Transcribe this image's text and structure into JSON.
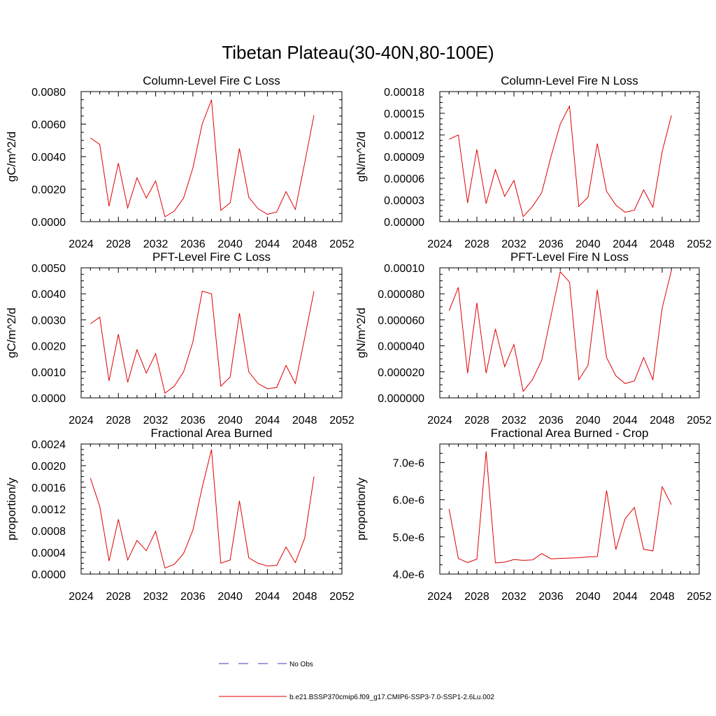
{
  "figure": {
    "title": "Tibetan Plateau(30-40N,80-100E)"
  },
  "legend": {
    "items": [
      {
        "label": "No Obs",
        "color": "#3b3bb8",
        "dash": true
      },
      {
        "label": "b.e21.BSSP370cmip6.f09_g17.CMIP6-SSP3-7.0-SSP1-2.6Lu.002",
        "color": "#e00000",
        "dash": false
      }
    ]
  },
  "colors": {
    "series": "#e00000",
    "axis": "#000000"
  },
  "chart_data": [
    {
      "type": "line",
      "title": "Column-Level Fire C Loss",
      "ylabel": "gC/m^2/d",
      "xlim": [
        2024,
        2052
      ],
      "xticks": [
        2024,
        2028,
        2032,
        2036,
        2040,
        2044,
        2048,
        2052
      ],
      "ylim": [
        0,
        0.008
      ],
      "yticks": [
        0,
        0.002,
        0.004,
        0.006,
        0.008
      ],
      "ytick_labels": [
        "0.0000",
        "0.0020",
        "0.0040",
        "0.0060",
        "0.0080"
      ],
      "x": [
        2025,
        2026,
        2027,
        2028,
        2029,
        2030,
        2031,
        2032,
        2033,
        2034,
        2035,
        2036,
        2037,
        2038,
        2039,
        2040,
        2041,
        2042,
        2043,
        2044,
        2045,
        2046,
        2047,
        2048,
        2049
      ],
      "values": [
        0.00515,
        0.00475,
        0.00095,
        0.0036,
        0.00085,
        0.0027,
        0.00145,
        0.0025,
        0.0003,
        0.00065,
        0.00145,
        0.0033,
        0.006,
        0.0075,
        0.0007,
        0.00115,
        0.0045,
        0.0015,
        0.0008,
        0.00045,
        0.0006,
        0.00185,
        0.00075,
        0.0036,
        0.00655
      ]
    },
    {
      "type": "line",
      "title": "Column-Level Fire N Loss",
      "ylabel": "gN/m^2/d",
      "xlim": [
        2024,
        2052
      ],
      "xticks": [
        2024,
        2028,
        2032,
        2036,
        2040,
        2044,
        2048,
        2052
      ],
      "ylim": [
        0,
        0.00018
      ],
      "yticks": [
        0,
        3e-05,
        6e-05,
        9e-05,
        0.00012,
        0.00015,
        0.00018
      ],
      "ytick_labels": [
        "0.00000",
        "0.00003",
        "0.00006",
        "0.00009",
        "0.00012",
        "0.00015",
        "0.00018"
      ],
      "x": [
        2025,
        2026,
        2027,
        2028,
        2029,
        2030,
        2031,
        2032,
        2033,
        2034,
        2035,
        2036,
        2037,
        2038,
        2039,
        2040,
        2041,
        2042,
        2043,
        2044,
        2045,
        2046,
        2047,
        2048,
        2049
      ],
      "values": [
        0.000114,
        0.00012,
        2.6e-05,
        0.0001,
        2.5e-05,
        7.2e-05,
        3.5e-05,
        5.7e-05,
        7e-06,
        2.1e-05,
        4e-05,
        9e-05,
        0.000135,
        0.00016,
        2.1e-05,
        3.4e-05,
        0.000108,
        4.2e-05,
        2.3e-05,
        1.3e-05,
        1.6e-05,
        4.4e-05,
        2e-05,
        9.7e-05,
        0.000147
      ]
    },
    {
      "type": "line",
      "title": "PFT-Level Fire C Loss",
      "ylabel": "gC/m^2/d",
      "xlim": [
        2024,
        2052
      ],
      "xticks": [
        2024,
        2028,
        2032,
        2036,
        2040,
        2044,
        2048,
        2052
      ],
      "ylim": [
        0,
        0.005
      ],
      "yticks": [
        0,
        0.001,
        0.002,
        0.003,
        0.004,
        0.005
      ],
      "ytick_labels": [
        "0.0000",
        "0.0010",
        "0.0020",
        "0.0030",
        "0.0040",
        "0.0050"
      ],
      "x": [
        2025,
        2026,
        2027,
        2028,
        2029,
        2030,
        2031,
        2032,
        2033,
        2034,
        2035,
        2036,
        2037,
        2038,
        2039,
        2040,
        2041,
        2042,
        2043,
        2044,
        2045,
        2046,
        2047,
        2048,
        2049
      ],
      "values": [
        0.00285,
        0.0031,
        0.00065,
        0.00245,
        0.0006,
        0.00185,
        0.00095,
        0.0017,
        0.00018,
        0.00045,
        0.001,
        0.00215,
        0.0041,
        0.004,
        0.00045,
        0.0008,
        0.00325,
        0.001,
        0.00055,
        0.00035,
        0.0004,
        0.00125,
        0.00055,
        0.0023,
        0.0041
      ]
    },
    {
      "type": "line",
      "title": "PFT-Level Fire N Loss",
      "ylabel": "gN/m^2/d",
      "xlim": [
        2024,
        2052
      ],
      "xticks": [
        2024,
        2028,
        2032,
        2036,
        2040,
        2044,
        2048,
        2052
      ],
      "ylim": [
        0,
        0.0001
      ],
      "yticks": [
        0,
        2e-05,
        4e-05,
        6e-05,
        8e-05,
        0.0001
      ],
      "ytick_labels": [
        "0.000000",
        "0.000020",
        "0.000040",
        "0.000060",
        "0.000080",
        "0.00010"
      ],
      "x": [
        2025,
        2026,
        2027,
        2028,
        2029,
        2030,
        2031,
        2032,
        2033,
        2034,
        2035,
        2036,
        2037,
        2038,
        2039,
        2040,
        2041,
        2042,
        2043,
        2044,
        2045,
        2046,
        2047,
        2048,
        2049
      ],
      "values": [
        6.7e-05,
        8.5e-05,
        1.9e-05,
        7.3e-05,
        1.9e-05,
        5.3e-05,
        2.4e-05,
        4.1e-05,
        5e-06,
        1.4e-05,
        2.9e-05,
        6.3e-05,
        9.7e-05,
        8.9e-05,
        1.4e-05,
        2.5e-05,
        8.3e-05,
        3.1e-05,
        1.7e-05,
        1.1e-05,
        1.3e-05,
        3.1e-05,
        1.4e-05,
        6.9e-05,
        9.8e-05
      ]
    },
    {
      "type": "line",
      "title": "Fractional Area Burned",
      "ylabel": "proportion/y",
      "xlim": [
        2024,
        2052
      ],
      "xticks": [
        2024,
        2028,
        2032,
        2036,
        2040,
        2044,
        2048,
        2052
      ],
      "ylim": [
        0,
        0.0024
      ],
      "yticks": [
        0,
        0.0004,
        0.0008,
        0.0012,
        0.0016,
        0.002,
        0.0024
      ],
      "ytick_labels": [
        "0.0000",
        "0.0004",
        "0.0008",
        "0.0012",
        "0.0016",
        "0.0020",
        "0.0024"
      ],
      "x": [
        2025,
        2026,
        2027,
        2028,
        2029,
        2030,
        2031,
        2032,
        2033,
        2034,
        2035,
        2036,
        2037,
        2038,
        2039,
        2040,
        2041,
        2042,
        2043,
        2044,
        2045,
        2046,
        2047,
        2048,
        2049
      ],
      "values": [
        0.00177,
        0.00125,
        0.00024,
        0.00101,
        0.00026,
        0.00062,
        0.00043,
        0.00079,
        0.00011,
        0.00018,
        0.00038,
        0.00081,
        0.0016,
        0.0023,
        0.0002,
        0.00026,
        0.00135,
        0.0003,
        0.0002,
        0.00015,
        0.00016,
        0.0005,
        0.00021,
        0.00066,
        0.0018
      ]
    },
    {
      "type": "line",
      "title": "Fractional Area Burned - Crop",
      "ylabel": "proportion/y",
      "xlim": [
        2024,
        2052
      ],
      "xticks": [
        2024,
        2028,
        2032,
        2036,
        2040,
        2044,
        2048,
        2052
      ],
      "ylim": [
        4e-06,
        7.5e-06
      ],
      "yticks": [
        4e-06,
        5e-06,
        6e-06,
        7e-06
      ],
      "ytick_labels": [
        "4.0e-6",
        "5.0e-6",
        "6.0e-6",
        "7.0e-6"
      ],
      "x": [
        2025,
        2026,
        2027,
        2028,
        2029,
        2030,
        2031,
        2032,
        2033,
        2034,
        2035,
        2036,
        2037,
        2038,
        2039,
        2040,
        2041,
        2042,
        2043,
        2044,
        2045,
        2046,
        2047,
        2048,
        2049
      ],
      "values": [
        5.75e-06,
        4.42e-06,
        4.31e-06,
        4.4e-06,
        7.3e-06,
        4.3e-06,
        4.32e-06,
        4.39e-06,
        4.37e-06,
        4.38e-06,
        4.55e-06,
        4.41e-06,
        4.42e-06,
        4.43e-06,
        4.44e-06,
        4.46e-06,
        4.47e-06,
        6.25e-06,
        4.66e-06,
        5.49e-06,
        5.79e-06,
        4.67e-06,
        4.62e-06,
        6.35e-06,
        5.87e-06
      ]
    }
  ]
}
